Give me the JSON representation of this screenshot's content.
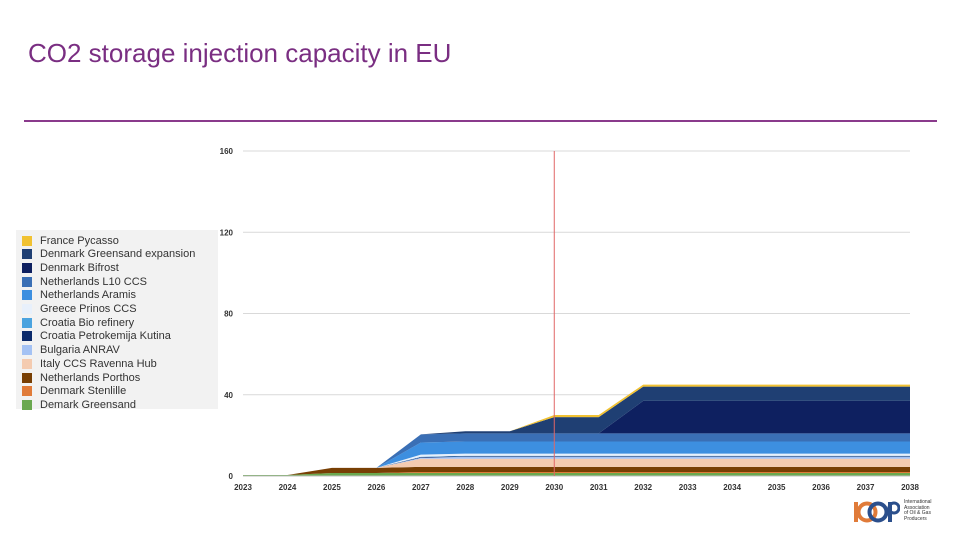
{
  "slide": {
    "title": "CO2 storage injection capacity in EU"
  },
  "logo": {
    "mark": "IOGP",
    "lines": [
      "International",
      "Association",
      "of Oil & Gas",
      "Producers"
    ]
  },
  "chart_data": {
    "type": "area",
    "stacked": true,
    "title": "",
    "xlabel": "",
    "ylabel": "",
    "x": [
      2023,
      2024,
      2025,
      2026,
      2027,
      2028,
      2029,
      2030,
      2031,
      2032,
      2033,
      2034,
      2035,
      2036,
      2037,
      2038
    ],
    "ylim": [
      0,
      160
    ],
    "yticks": [
      0,
      40,
      80,
      120,
      160
    ],
    "grid": true,
    "legend_position": "left",
    "marker_line_x": 2030,
    "marker_line_color": "#e06666",
    "series": [
      {
        "name": "Demark Greensand",
        "color": "#6aa84f",
        "values": [
          0.5,
          0.5,
          1.5,
          1.5,
          1.5,
          1.5,
          1.5,
          1.5,
          1.5,
          1.5,
          1.5,
          1.5,
          1.5,
          1.5,
          1.5,
          1.5
        ]
      },
      {
        "name": "Denmark Stenlille",
        "color": "#e07b39",
        "values": [
          0,
          0,
          0,
          0,
          0.5,
          0.5,
          0.5,
          0.5,
          0.5,
          0.5,
          0.5,
          0.5,
          0.5,
          0.5,
          0.5,
          0.5
        ]
      },
      {
        "name": "Netherlands Porthos",
        "color": "#783f04",
        "values": [
          0,
          0,
          2.5,
          2.5,
          2.5,
          2.5,
          2.5,
          2.5,
          2.5,
          2.5,
          2.5,
          2.5,
          2.5,
          2.5,
          2.5,
          2.5
        ]
      },
      {
        "name": "Italy CCS Ravenna Hub",
        "color": "#f4cbb0",
        "values": [
          0,
          0,
          0,
          0,
          4,
          4,
          4,
          4,
          4,
          4,
          4,
          4,
          4,
          4,
          4,
          4
        ]
      },
      {
        "name": "Bulgaria ANRAV",
        "color": "#a4c2f4",
        "values": [
          0,
          0,
          0,
          0,
          0.5,
          1,
          1,
          1,
          1,
          1,
          1,
          1,
          1,
          1,
          1,
          1
        ]
      },
      {
        "name": "Croatia Petrokemija Kutina",
        "color": "#0b2a6b",
        "values": [
          0,
          0,
          0,
          0,
          0.3,
          0.3,
          0.3,
          0.3,
          0.3,
          0.3,
          0.3,
          0.3,
          0.3,
          0.3,
          0.3,
          0.3
        ]
      },
      {
        "name": "Croatia Bio refinery",
        "color": "#4aa3df",
        "values": [
          0,
          0,
          0,
          0,
          0.2,
          0.2,
          0.2,
          0.2,
          0.2,
          0.2,
          0.2,
          0.2,
          0.2,
          0.2,
          0.2,
          0.2
        ]
      },
      {
        "name": "Greece Prinos CCS",
        "color": "#e8f0fb",
        "values": [
          0,
          0,
          0,
          0,
          1,
          1,
          1,
          1,
          1,
          1,
          1,
          1,
          1,
          1,
          1,
          1
        ]
      },
      {
        "name": "Netherlands Aramis",
        "color": "#3d8fe0",
        "values": [
          0,
          0,
          0,
          0,
          6,
          6,
          6,
          6,
          6,
          6,
          6,
          6,
          6,
          6,
          6,
          6
        ]
      },
      {
        "name": "Netherlands L10 CCS",
        "color": "#3a6fb5",
        "values": [
          0,
          0,
          0,
          0,
          4,
          4,
          4,
          4,
          4,
          4,
          4,
          4,
          4,
          4,
          4,
          4
        ]
      },
      {
        "name": "Denmark Bifrost",
        "color": "#0e2060",
        "values": [
          0,
          0,
          0,
          0,
          0,
          0,
          0,
          0,
          0,
          16,
          16,
          16,
          16,
          16,
          16,
          16
        ]
      },
      {
        "name": "Denmark Greensand expansion",
        "color": "#1f3f73",
        "values": [
          0,
          0,
          0,
          0,
          0,
          1,
          1,
          8,
          8,
          7,
          7,
          7,
          7,
          7,
          7,
          7
        ]
      },
      {
        "name": "France Pycasso",
        "color": "#f1c232",
        "values": [
          0,
          0,
          0,
          0,
          0,
          0,
          0,
          1,
          1,
          1,
          1,
          1,
          1,
          1,
          1,
          1
        ]
      }
    ]
  }
}
